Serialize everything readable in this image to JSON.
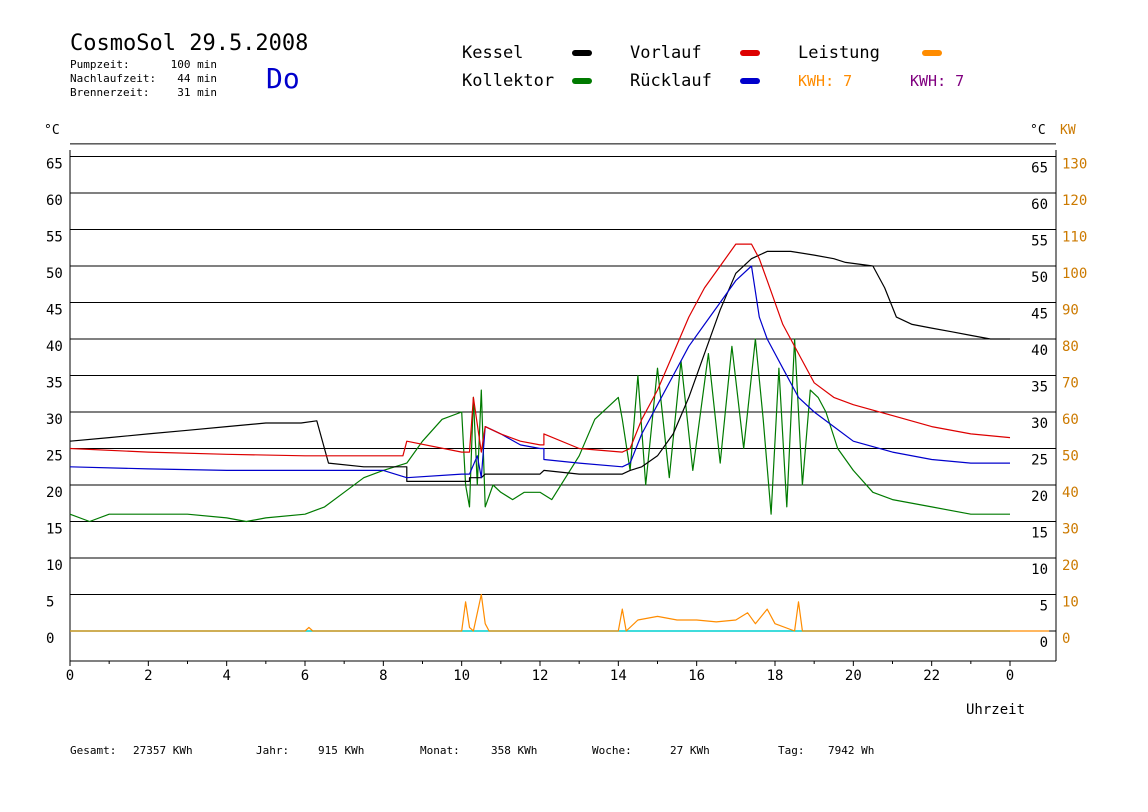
{
  "header": {
    "title": "CosmoSol 29.5.2008",
    "stats": [
      {
        "label": "Pumpzeit:",
        "value": "100 min"
      },
      {
        "label": "Nachlaufzeit:",
        "value": "44 min"
      },
      {
        "label": "Brennerzeit:",
        "value": "31 min"
      }
    ],
    "weekday": "Do"
  },
  "legend": {
    "kessel": "Kessel",
    "kollektor": "Kollektor",
    "vorlauf": "Vorlauf",
    "ruecklauf": "Rücklauf",
    "leistung": "Leistung",
    "kwh_orange": "KWH: 7",
    "kwh_purple": "KWH: 7"
  },
  "colors": {
    "kessel": "#000000",
    "kollektor": "#007a00",
    "vorlauf": "#dd0000",
    "ruecklauf": "#0000cc",
    "leistung": "#ff8c00",
    "purple": "#800080",
    "cyan": "#00d0d0",
    "weekday": "#0000cc"
  },
  "footer": [
    {
      "label": "Gesamt:",
      "value": "27357 KWh"
    },
    {
      "label": "Jahr:",
      "value": "915 KWh"
    },
    {
      "label": "Monat:",
      "value": "358 KWh"
    },
    {
      "label": "Woche:",
      "value": "27 KWh"
    },
    {
      "label": "Tag:",
      "value": "7942 Wh"
    }
  ],
  "chart_data": {
    "type": "line",
    "xlabel": "Uhrzeit",
    "ylabel_left": "°C",
    "ylabel_right": "°C",
    "ylabel_right2": "KW",
    "ylim": [
      -3,
      68
    ],
    "xlim": [
      0,
      25
    ],
    "grid": true,
    "x_ticks": [
      "0",
      "2",
      "4",
      "6",
      "8",
      "10",
      "12",
      "14",
      "16",
      "18",
      "20",
      "22",
      "0"
    ],
    "y_ticks": [
      0,
      5,
      10,
      15,
      20,
      25,
      30,
      35,
      40,
      45,
      50,
      55,
      60,
      65
    ],
    "kw_ticks": [
      "0",
      "10",
      "20",
      "30",
      "40",
      "50",
      "60",
      "70",
      "80",
      "90",
      "100",
      "110",
      "120",
      "130"
    ],
    "series": [
      {
        "name": "Kessel",
        "x": [
          0,
          1,
          2,
          3,
          4,
          5,
          5.9,
          6.3,
          6.6,
          7.5,
          8.6,
          8.6,
          10.2,
          10.2,
          10.5,
          10.6,
          11,
          12,
          12.1,
          13,
          14.1,
          14.3,
          14.6,
          15,
          15.4,
          15.8,
          16.2,
          16.6,
          17,
          17.4,
          17.8,
          18.4,
          19,
          19.5,
          19.8,
          20.5,
          20.8,
          21.1,
          21.5,
          22,
          22.5,
          23,
          23.5,
          24
        ],
        "values": [
          26,
          26.5,
          27,
          27.5,
          28,
          28.5,
          28.5,
          28.8,
          23,
          22.5,
          22.5,
          20.5,
          20.5,
          21,
          21,
          21.5,
          21.5,
          21.5,
          22,
          21.5,
          21.5,
          22,
          22.5,
          24,
          27,
          32,
          38,
          44,
          49,
          51,
          52,
          52,
          51.5,
          51,
          50.5,
          50,
          47,
          43,
          42,
          41.5,
          41,
          40.5,
          40,
          40
        ]
      },
      {
        "name": "Vorlauf",
        "x": [
          0,
          2,
          4,
          6,
          6.5,
          7,
          8.5,
          8.6,
          10,
          10.2,
          10.3,
          10.5,
          10.6,
          11,
          11.5,
          12,
          12.1,
          12.1,
          13,
          14.1,
          14.3,
          14.6,
          15,
          15.4,
          15.8,
          16.2,
          16.6,
          17,
          17.4,
          17.6,
          17.8,
          18.2,
          18.6,
          19,
          19.5,
          20,
          21,
          22,
          23,
          24
        ],
        "values": [
          25,
          24.5,
          24.2,
          24,
          24,
          24,
          24,
          26,
          24.5,
          24.5,
          32,
          24.5,
          28,
          27,
          26,
          25.5,
          25.5,
          27,
          25,
          24.5,
          25,
          29,
          33,
          38,
          43,
          47,
          50,
          53,
          53,
          51,
          48,
          42,
          38,
          34,
          32,
          31,
          29.5,
          28,
          27,
          26.5
        ]
      },
      {
        "name": "Rücklauf",
        "x": [
          0,
          2,
          4,
          6,
          8,
          8.6,
          8.6,
          10,
          10.2,
          10.4,
          10.5,
          10.6,
          11,
          11.5,
          12,
          12.1,
          12.1,
          13,
          14.1,
          14.3,
          14.6,
          15,
          15.4,
          15.8,
          16.2,
          16.6,
          17,
          17.4,
          17.6,
          17.8,
          18.2,
          18.6,
          19,
          19.5,
          20,
          21,
          22,
          23,
          24
        ],
        "values": [
          22.5,
          22.2,
          22,
          22,
          22,
          21,
          21,
          21.5,
          21.5,
          24,
          21,
          28,
          27,
          25.5,
          25,
          25,
          23.5,
          23,
          22.5,
          23,
          27,
          31,
          35,
          39,
          42,
          45,
          48,
          50,
          43,
          40,
          36,
          32,
          30,
          28,
          26,
          24.5,
          23.5,
          23,
          23
        ]
      },
      {
        "name": "Kollektor",
        "x": [
          0,
          0.5,
          1,
          2,
          3,
          4,
          4.5,
          5,
          6,
          6.5,
          7,
          7.5,
          8,
          8.6,
          9,
          9.5,
          10,
          10.1,
          10.2,
          10.3,
          10.4,
          10.5,
          10.6,
          10.8,
          11,
          11.3,
          11.6,
          12,
          12.3,
          13,
          13.4,
          13.8,
          14,
          14.1,
          14.3,
          14.5,
          14.7,
          15,
          15.3,
          15.6,
          15.9,
          16.3,
          16.6,
          16.9,
          17.2,
          17.5,
          17.7,
          17.9,
          18.1,
          18.3,
          18.5,
          18.7,
          18.9,
          19.1,
          19.3,
          19.6,
          20,
          20.5,
          21,
          22,
          23,
          24
        ],
        "values": [
          16,
          15,
          16,
          16,
          16,
          15.5,
          15,
          15.5,
          16,
          17,
          19,
          21,
          22,
          23,
          26,
          29,
          30,
          20,
          17,
          32,
          20,
          33,
          17,
          20,
          19,
          18,
          19,
          19,
          18,
          24,
          29,
          31,
          32,
          29,
          22,
          35,
          20,
          36,
          21,
          37,
          22,
          38,
          23,
          39,
          25,
          40,
          29,
          16,
          36,
          17,
          40,
          20,
          33,
          32,
          30,
          25,
          22,
          19,
          18,
          17,
          16,
          16
        ]
      },
      {
        "name": "Leistung (KW)",
        "x": [
          0,
          6,
          6.1,
          6.2,
          10,
          10.1,
          10.2,
          10.3,
          10.5,
          10.6,
          10.7,
          11,
          14,
          14.1,
          14.2,
          14.5,
          15,
          15.5,
          16,
          16.5,
          17,
          17.3,
          17.5,
          17.8,
          18,
          18.5,
          18.6,
          18.7,
          25
        ],
        "values": [
          0,
          0,
          1,
          0,
          0,
          8,
          1,
          0,
          10,
          2,
          0,
          0,
          0,
          6,
          0,
          3,
          4,
          3,
          3,
          2.5,
          3,
          5,
          2,
          6,
          2,
          0,
          8,
          0,
          0
        ]
      }
    ]
  }
}
